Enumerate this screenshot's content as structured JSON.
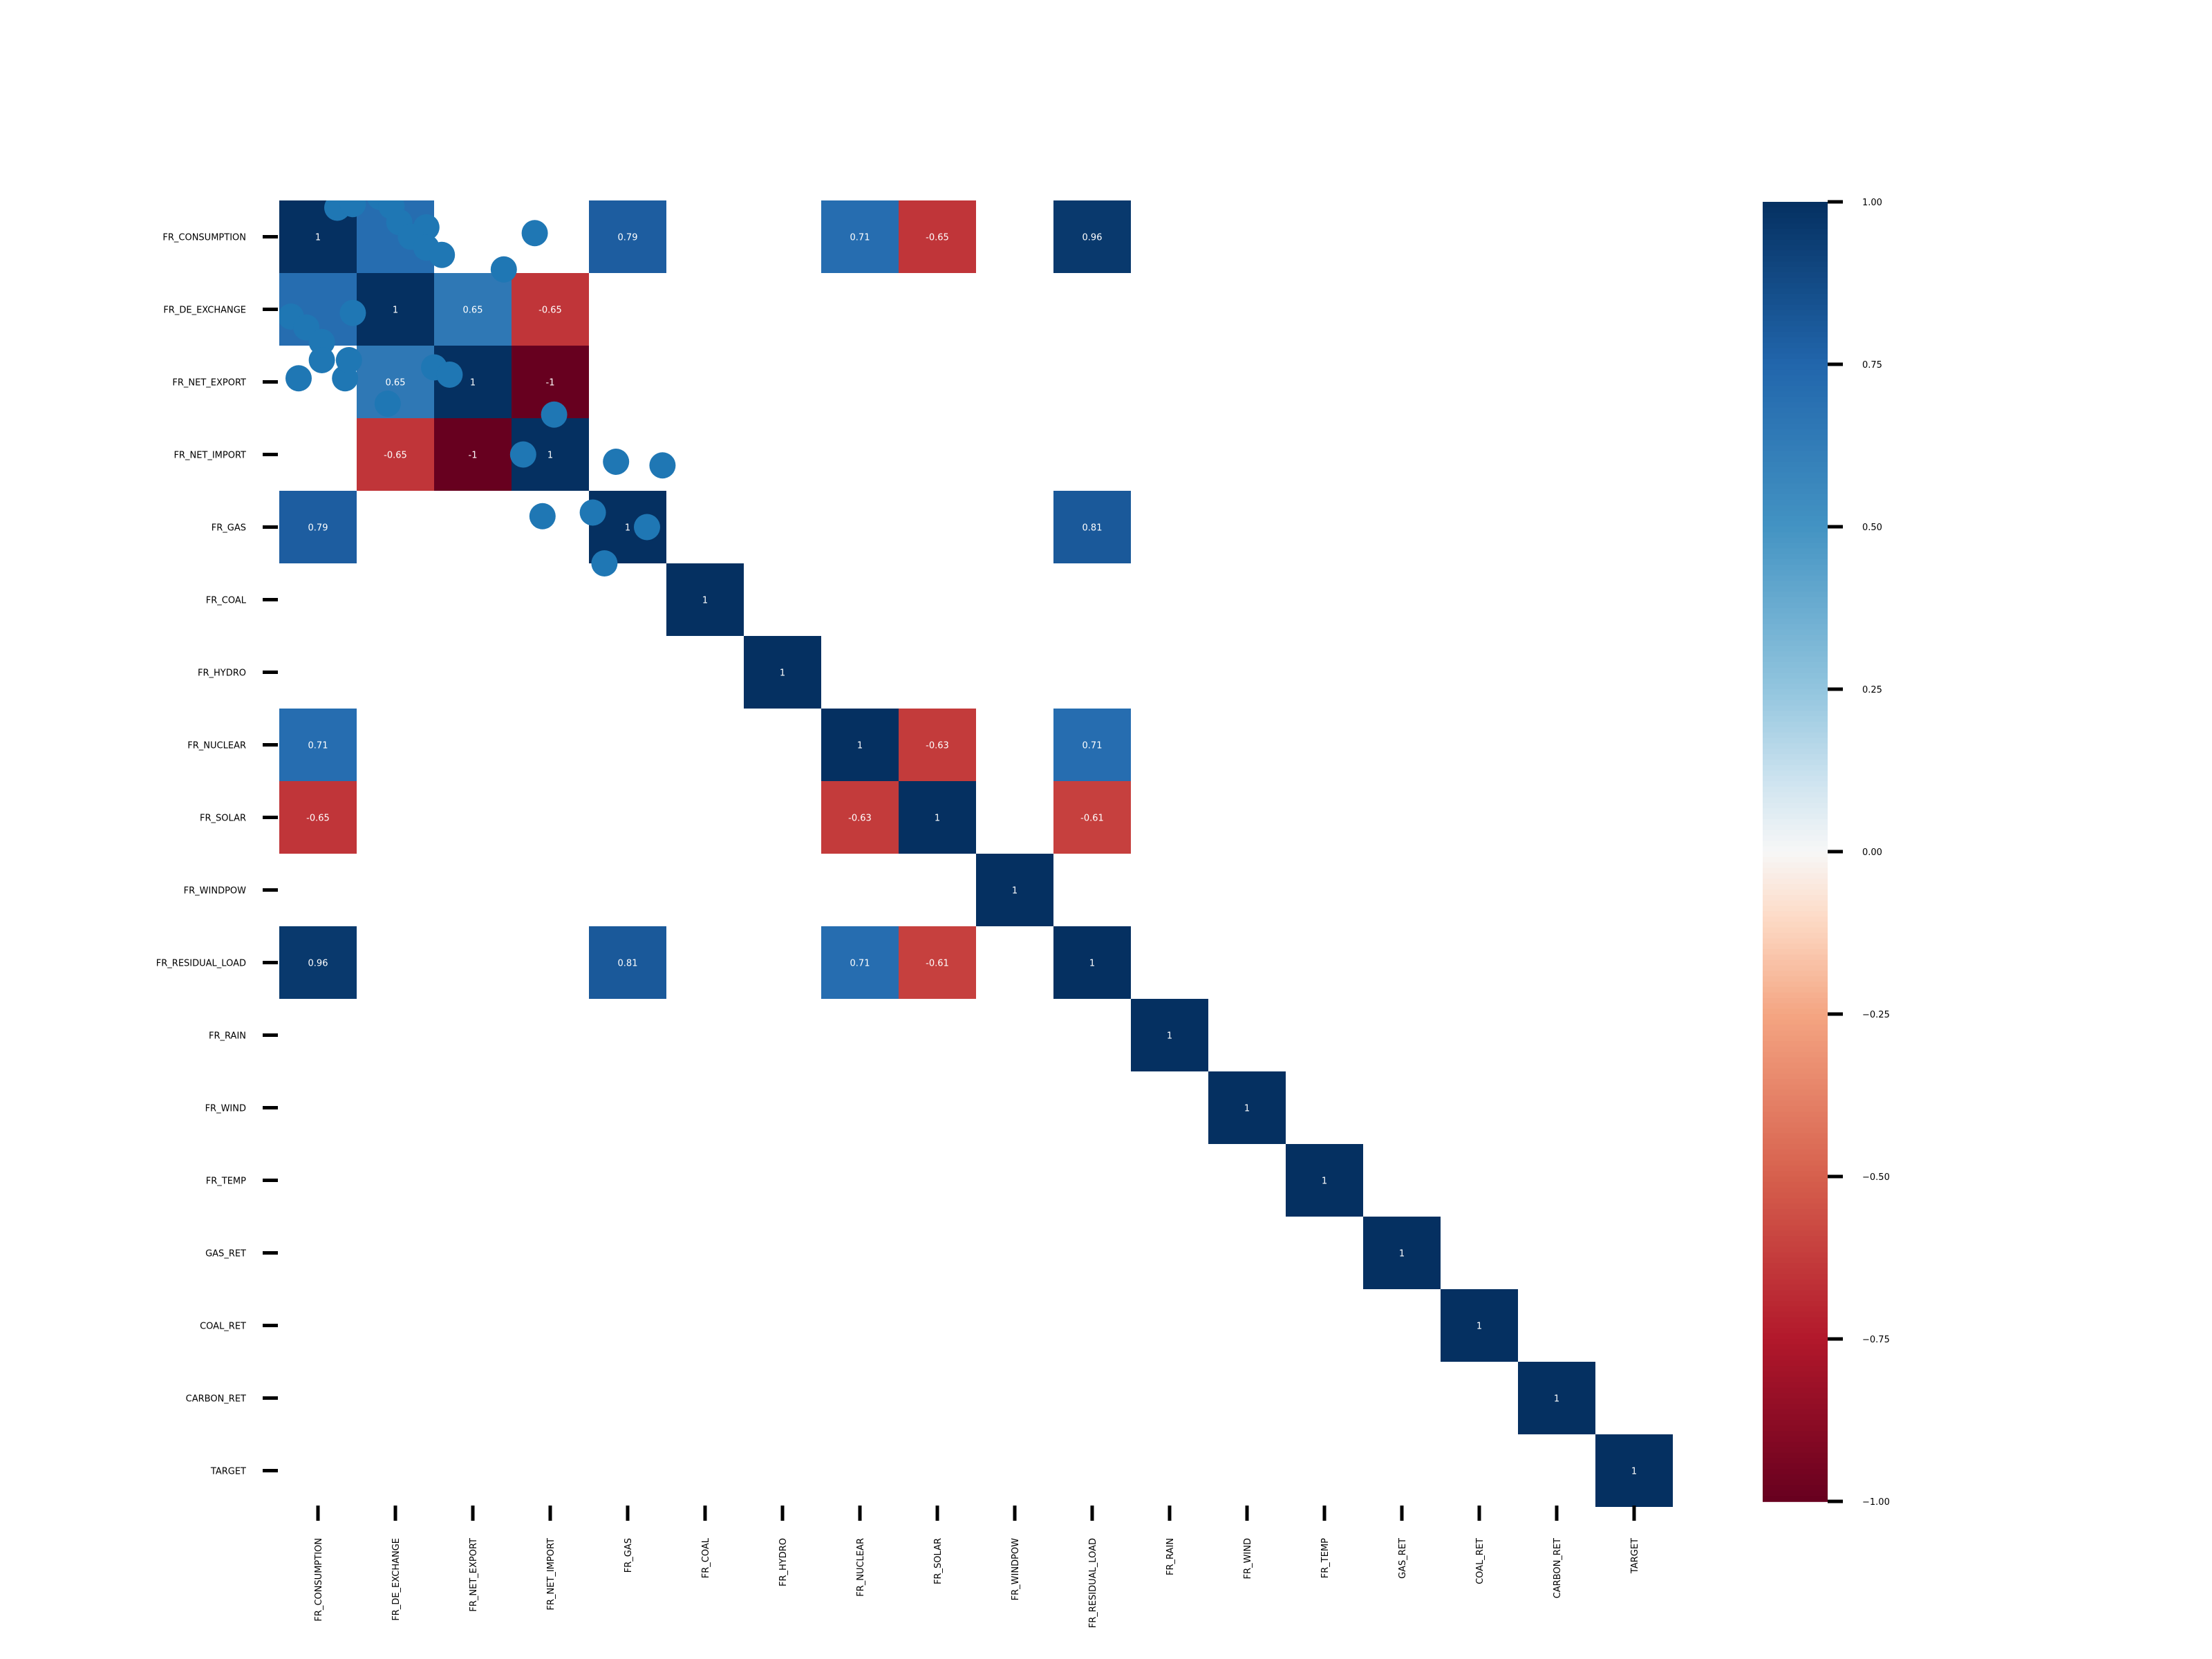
{
  "chart_data": {
    "type": "heatmap",
    "title": "",
    "xlabel": "",
    "ylabel": "",
    "labels": [
      "FR_CONSUMPTION",
      "FR_DE_EXCHANGE",
      "FR_NET_EXPORT",
      "FR_NET_IMPORT",
      "FR_GAS",
      "FR_COAL",
      "FR_HYDRO",
      "FR_NUCLEAR",
      "FR_SOLAR",
      "FR_WINDPOW",
      "FR_RESIDUAL_LOAD",
      "FR_RAIN",
      "FR_WIND",
      "FR_TEMP",
      "GAS_RET",
      "COAL_RET",
      "CARBON_RET",
      "TARGET"
    ],
    "cells": [
      {
        "row": 0,
        "col": 0,
        "value": 1,
        "label": "1"
      },
      {
        "row": 0,
        "col": 1,
        "value": 0.71,
        "label": ""
      },
      {
        "row": 0,
        "col": 4,
        "value": 0.79,
        "label": "0.79"
      },
      {
        "row": 0,
        "col": 7,
        "value": 0.71,
        "label": "0.71"
      },
      {
        "row": 0,
        "col": 8,
        "value": -0.65,
        "label": "-0.65"
      },
      {
        "row": 0,
        "col": 10,
        "value": 0.96,
        "label": "0.96"
      },
      {
        "row": 1,
        "col": 0,
        "value": 0.71,
        "label": ""
      },
      {
        "row": 1,
        "col": 1,
        "value": 1,
        "label": "1"
      },
      {
        "row": 1,
        "col": 2,
        "value": 0.65,
        "label": "0.65"
      },
      {
        "row": 1,
        "col": 3,
        "value": -0.65,
        "label": "-0.65"
      },
      {
        "row": 2,
        "col": 1,
        "value": 0.65,
        "label": "0.65"
      },
      {
        "row": 2,
        "col": 2,
        "value": 1,
        "label": "1"
      },
      {
        "row": 2,
        "col": 3,
        "value": -1,
        "label": "-1"
      },
      {
        "row": 3,
        "col": 1,
        "value": -0.65,
        "label": "-0.65"
      },
      {
        "row": 3,
        "col": 2,
        "value": -1,
        "label": "-1"
      },
      {
        "row": 3,
        "col": 3,
        "value": 1,
        "label": "1"
      },
      {
        "row": 4,
        "col": 0,
        "value": 0.79,
        "label": "0.79"
      },
      {
        "row": 4,
        "col": 4,
        "value": 1,
        "label": "1"
      },
      {
        "row": 4,
        "col": 10,
        "value": 0.81,
        "label": "0.81"
      },
      {
        "row": 5,
        "col": 5,
        "value": 1,
        "label": "1"
      },
      {
        "row": 6,
        "col": 6,
        "value": 1,
        "label": "1"
      },
      {
        "row": 7,
        "col": 0,
        "value": 0.71,
        "label": "0.71"
      },
      {
        "row": 7,
        "col": 7,
        "value": 1,
        "label": "1"
      },
      {
        "row": 7,
        "col": 8,
        "value": -0.63,
        "label": "-0.63"
      },
      {
        "row": 7,
        "col": 10,
        "value": 0.71,
        "label": "0.71"
      },
      {
        "row": 8,
        "col": 0,
        "value": -0.65,
        "label": "-0.65"
      },
      {
        "row": 8,
        "col": 7,
        "value": -0.63,
        "label": "-0.63"
      },
      {
        "row": 8,
        "col": 8,
        "value": 1,
        "label": "1"
      },
      {
        "row": 8,
        "col": 10,
        "value": -0.61,
        "label": "-0.61"
      },
      {
        "row": 9,
        "col": 9,
        "value": 1,
        "label": "1"
      },
      {
        "row": 10,
        "col": 0,
        "value": 0.96,
        "label": "0.96"
      },
      {
        "row": 10,
        "col": 4,
        "value": 0.81,
        "label": "0.81"
      },
      {
        "row": 10,
        "col": 7,
        "value": 0.71,
        "label": "0.71"
      },
      {
        "row": 10,
        "col": 8,
        "value": -0.61,
        "label": "-0.61"
      },
      {
        "row": 10,
        "col": 10,
        "value": 1,
        "label": "1"
      },
      {
        "row": 11,
        "col": 11,
        "value": 1,
        "label": "1"
      },
      {
        "row": 12,
        "col": 12,
        "value": 1,
        "label": "1"
      },
      {
        "row": 13,
        "col": 13,
        "value": 1,
        "label": "1"
      },
      {
        "row": 14,
        "col": 14,
        "value": 1,
        "label": "1"
      },
      {
        "row": 15,
        "col": 15,
        "value": 1,
        "label": "1"
      },
      {
        "row": 16,
        "col": 16,
        "value": 1,
        "label": "1"
      },
      {
        "row": 17,
        "col": 17,
        "value": 1,
        "label": "1"
      }
    ],
    "vmin": -1,
    "vmax": 1,
    "colormap": "RdBu",
    "colorbar_ticks": [
      {
        "value": 1,
        "label": "1.00"
      },
      {
        "value": 0.75,
        "label": "0.75"
      },
      {
        "value": 0.5,
        "label": "0.50"
      },
      {
        "value": 0.25,
        "label": "0.25"
      },
      {
        "value": 0,
        "label": "0.00"
      },
      {
        "value": -0.25,
        "label": "−0.25"
      },
      {
        "value": -0.5,
        "label": "−0.50"
      },
      {
        "value": -0.75,
        "label": "−0.75"
      },
      {
        "value": -1,
        "label": "−1.00"
      }
    ],
    "overlay_dots_color": "#1f77b4",
    "overlay_dots": [
      [
        0.75,
        0.1
      ],
      [
        0.95,
        0.05
      ],
      [
        1.3,
        -0.05
      ],
      [
        1.45,
        0.08
      ],
      [
        1.55,
        0.3
      ],
      [
        1.9,
        0.37
      ],
      [
        1.7,
        0.5
      ],
      [
        1.9,
        0.65
      ],
      [
        2.1,
        0.75
      ],
      [
        3.3,
        0.45
      ],
      [
        2.9,
        0.95
      ],
      [
        0.15,
        1.6
      ],
      [
        0.35,
        1.75
      ],
      [
        0.55,
        1.95
      ],
      [
        0.95,
        1.55
      ],
      [
        0.55,
        2.2
      ],
      [
        0.25,
        2.45
      ],
      [
        0.85,
        2.45
      ],
      [
        0.9,
        2.2
      ],
      [
        1.4,
        2.8
      ],
      [
        2.0,
        2.3
      ],
      [
        2.2,
        2.4
      ],
      [
        3.15,
        3.5
      ],
      [
        3.55,
        2.95
      ],
      [
        4.35,
        3.6
      ],
      [
        4.05,
        4.3
      ],
      [
        4.75,
        4.5
      ],
      [
        4.95,
        3.65
      ],
      [
        3.4,
        4.35
      ],
      [
        4.2,
        5.0
      ]
    ]
  }
}
